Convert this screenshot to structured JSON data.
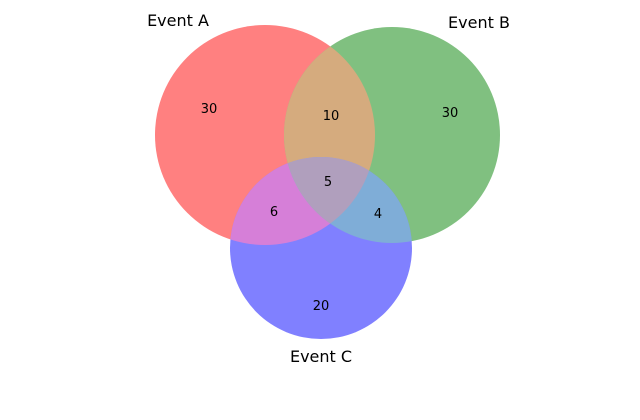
{
  "venn": {
    "sets": [
      {
        "key": "A",
        "label": "Event A",
        "color": "#ff0000"
      },
      {
        "key": "B",
        "label": "Event B",
        "color": "#008000"
      },
      {
        "key": "C",
        "label": "Event C",
        "color": "#0000ff"
      }
    ],
    "regions": {
      "A_only": "30",
      "B_only": "30",
      "C_only": "20",
      "AB_only": "10",
      "AC_only": "6",
      "BC_only": "4",
      "ABC": "5"
    },
    "circle_opacity": 0.5
  }
}
